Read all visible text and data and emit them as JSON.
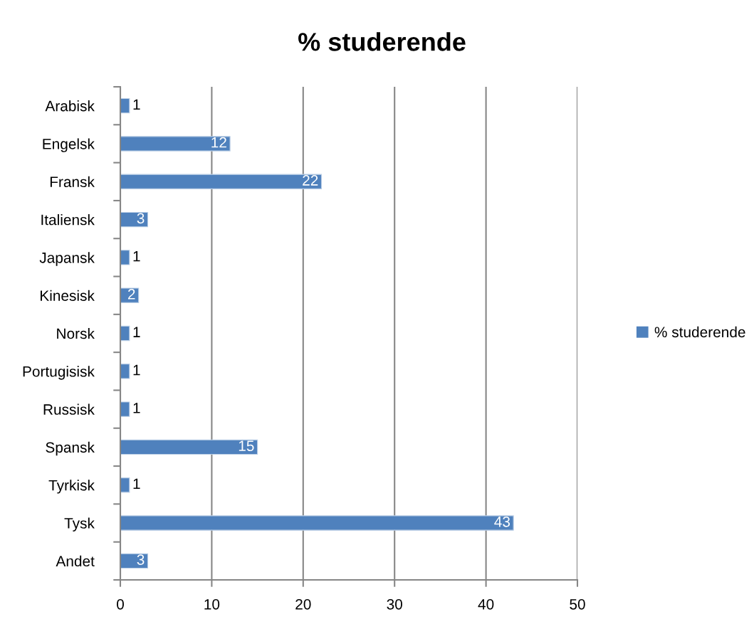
{
  "chart_data": {
    "type": "bar",
    "orientation": "horizontal",
    "title": "% studerende",
    "categories": [
      "Arabisk",
      "Engelsk",
      "Fransk",
      "Italiensk",
      "Japansk",
      "Kinesisk",
      "Norsk",
      "Portugisisk",
      "Russisk",
      "Spansk",
      "Tyrkisk",
      "Tysk",
      "Andet"
    ],
    "series": [
      {
        "name": "% studerende",
        "color": "#4f81bd",
        "values": [
          1,
          12,
          22,
          3,
          1,
          2,
          1,
          1,
          1,
          15,
          1,
          43,
          3
        ]
      }
    ],
    "xlim": [
      0,
      50
    ],
    "xticks": [
      0,
      10,
      20,
      30,
      40,
      50
    ],
    "grid": "x",
    "legend": "right",
    "data_labels": true
  }
}
